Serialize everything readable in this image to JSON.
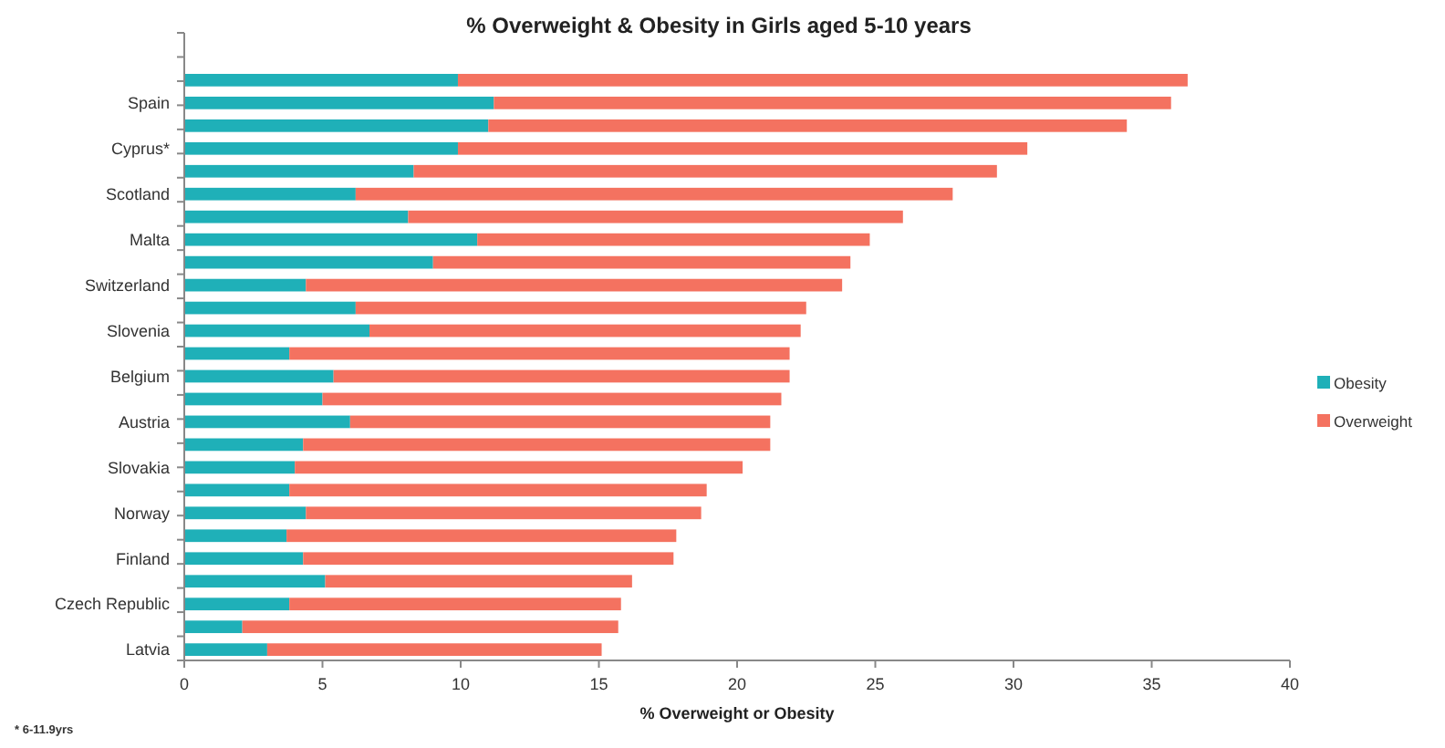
{
  "chart_data": {
    "type": "bar",
    "orientation": "horizontal",
    "stacked": true,
    "title": "% Overweight & Obesity in Girls aged 5-10 years",
    "xlabel": "% Overweight or Obesity",
    "categories": [
      null,
      "Spain",
      null,
      "Cyprus*",
      null,
      "Scotland",
      null,
      "Malta",
      null,
      "Switzerland",
      null,
      "Slovenia",
      null,
      "Belgium",
      null,
      "Austria",
      null,
      "Slovakia",
      null,
      "Norway",
      null,
      "Finland",
      null,
      "Czech Republic",
      null,
      "Latvia"
    ],
    "series": [
      {
        "name": "Obesity",
        "color": "#1fb0b8",
        "values": [
          9.9,
          11.2,
          11.0,
          9.9,
          8.3,
          6.2,
          8.1,
          10.6,
          9.0,
          4.4,
          6.2,
          6.7,
          3.8,
          5.4,
          5.0,
          6.0,
          4.3,
          4.0,
          3.8,
          4.4,
          3.7,
          4.3,
          5.1,
          3.8,
          2.1,
          3.0
        ]
      },
      {
        "name": "Overweight",
        "color": "#f47260",
        "values": [
          26.4,
          24.5,
          23.1,
          20.6,
          21.1,
          21.6,
          17.9,
          14.2,
          15.1,
          19.4,
          16.3,
          15.6,
          18.1,
          16.5,
          16.6,
          15.2,
          16.9,
          16.2,
          15.1,
          14.3,
          14.1,
          13.4,
          11.1,
          12.0,
          13.6,
          12.1
        ]
      }
    ],
    "xlim": [
      0,
      40
    ],
    "xticks": [
      0,
      5,
      10,
      15,
      20,
      25,
      30,
      35,
      40
    ],
    "grid": false,
    "legend": "right",
    "annotations": [
      "* 6-11.9yrs"
    ]
  }
}
